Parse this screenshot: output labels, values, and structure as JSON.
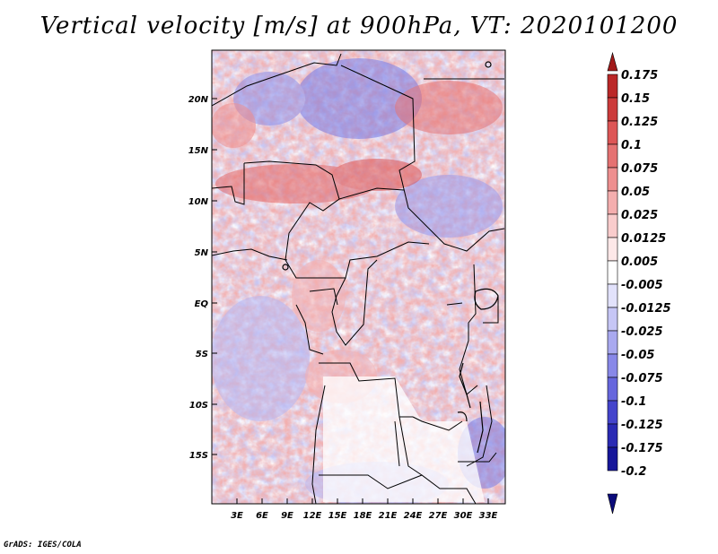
{
  "title": "Vertical velocity [m/s] at 900hPa, VT: 2020101200",
  "credit": "GrADS: IGES/COLA",
  "map": {
    "y_ticks": [
      "20N",
      "15N",
      "10N",
      "5N",
      "EQ",
      "5S",
      "10S",
      "15S"
    ],
    "x_ticks": [
      "3E",
      "6E",
      "9E",
      "12E",
      "15E",
      "18E",
      "21E",
      "24E",
      "27E",
      "30E",
      "33E"
    ]
  },
  "colorbar": {
    "labels": [
      "0.175",
      "0.15",
      "0.125",
      "0.1",
      "0.075",
      "0.05",
      "0.025",
      "0.0125",
      "0.005",
      "-0.005",
      "-0.0125",
      "-0.025",
      "-0.05",
      "-0.075",
      "-0.1",
      "-0.125",
      "-0.175",
      "-0.2"
    ],
    "colors": [
      "#a11a1a",
      "#bb2828",
      "#cc3b3b",
      "#dd5656",
      "#e57272",
      "#ee8f8f",
      "#f4aeae",
      "#f9cccc",
      "#fde8e8",
      "#ffffff",
      "#e2e2fb",
      "#c6c6f5",
      "#a9a9ef",
      "#8888e8",
      "#6666dd",
      "#4444cc",
      "#2a2ab4",
      "#16169a",
      "#0b0b7a"
    ]
  }
}
